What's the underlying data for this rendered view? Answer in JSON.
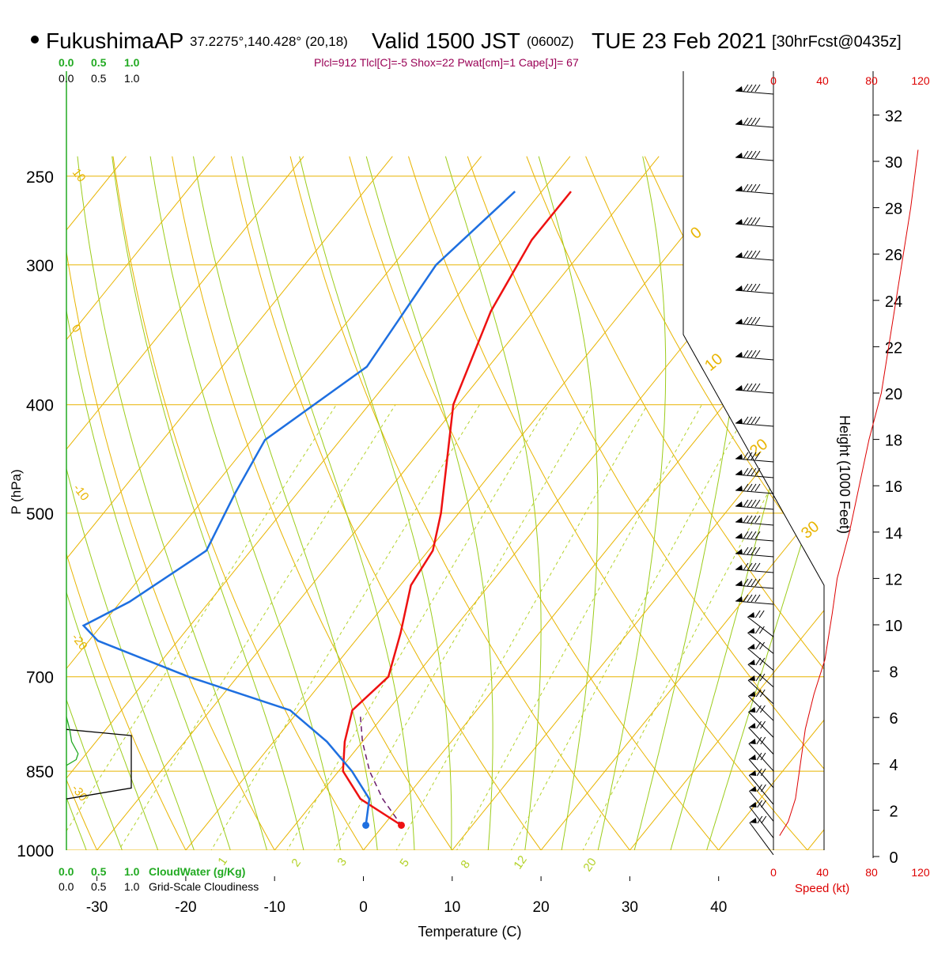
{
  "header": {
    "station": "FukushimaAP",
    "coords": "37.2275°,140.428° (20,18)",
    "valid": "Valid 1500 JST",
    "utc": "(0600Z)",
    "date": "TUE 23 Feb 2021",
    "forecast": "[30hrFcst@0435z]",
    "indices": "Plcl=912 Tlcl[C]=-5 Shox=22 Pwat[cm]=1 Cape[J]= 67"
  },
  "colors": {
    "temperature": "#ee1111",
    "dewpoint": "#1e6fe0",
    "parcel": "#6a1a6a",
    "isotherm": "#e8b400",
    "dry_adiabat": "#e8b400",
    "moist_adiabat": "#9ccc1a",
    "mixing_ratio": "#b4d22a",
    "cloudwater": "#22aa22",
    "indices": "#990055",
    "speed": "#dd0000"
  },
  "chart_data": {
    "type": "line",
    "xlabel": "Temperature (C)",
    "ylabel": "P (hPa)",
    "xlim": [
      -34,
      46
    ],
    "pressure_levels": [
      250,
      300,
      400,
      500,
      700,
      850,
      1000
    ],
    "x_ticks": [
      -30,
      -20,
      -10,
      0,
      10,
      20,
      30,
      40
    ],
    "isotherm_labels": [
      "10",
      "0",
      "-10",
      "-20",
      "-30"
    ],
    "dry_adiabat_labels": [
      "0",
      "10",
      "20",
      "30"
    ],
    "mixing_ratio_labels": [
      "1",
      "2",
      "3",
      "5",
      "8",
      "12",
      "20"
    ],
    "series": [
      {
        "name": "temperature",
        "pressure": [
          258,
          285,
          330,
          400,
          500,
          540,
          580,
          640,
          700,
          750,
          800,
          850,
          900,
          950
        ],
        "temperature": [
          -36.7,
          -36.7,
          -34.8,
          -30.5,
          -22.0,
          -19.5,
          -18.8,
          -15.6,
          -13.0,
          -14.0,
          -12.0,
          -9.5,
          -5.0,
          2.0
        ]
      },
      {
        "name": "dewpoint",
        "pressure": [
          258,
          300,
          370,
          430,
          480,
          540,
          600,
          630,
          650,
          700,
          750,
          800,
          850,
          900,
          950
        ],
        "temperature": [
          -43.0,
          -45.2,
          -43.7,
          -48.5,
          -47.0,
          -45.0,
          -49.0,
          -52.0,
          -49.0,
          -35.5,
          -21.0,
          -14.0,
          -8.5,
          -4.0,
          -2.0
        ]
      },
      {
        "name": "parcel",
        "pressure": [
          760,
          800,
          850,
          900,
          950
        ],
        "temperature": [
          -12.5,
          -10.0,
          -6.5,
          -2.5,
          2.0
        ]
      }
    ],
    "wind_axis": {
      "label": "Speed (kt)",
      "ticks": [
        "0",
        "40",
        "80",
        "120"
      ]
    },
    "height_axis": {
      "label": "Height (1000 Feet)",
      "ticks": [
        "0",
        "2",
        "4",
        "6",
        "8",
        "10",
        "12",
        "14",
        "16",
        "18",
        "20",
        "22",
        "24",
        "26",
        "28",
        "30",
        "32"
      ]
    },
    "cloud_axis": {
      "cloudwater_label": "CloudWater (g/Kg)",
      "cloudiness_label": "Grid-Scale Cloudiness",
      "ticks": [
        "0.0",
        "0.5",
        "1.0"
      ]
    },
    "wind_speed_profile": {
      "height_kft": [
        0.9,
        1.5,
        2.5,
        4.0,
        5.5,
        7.0,
        8.5,
        10.5,
        12.0,
        14.0,
        16.0,
        18.0,
        20.0,
        24.0,
        28.0,
        30.5
      ],
      "speed_kt": [
        5,
        12,
        18,
        22,
        26,
        33,
        42,
        48,
        52,
        62,
        70,
        78,
        88,
        100,
        112,
        118
      ]
    },
    "cloudwater_profile": {
      "pressure": [
        760,
        780,
        800,
        820,
        830,
        840
      ],
      "value": [
        0.0,
        0.05,
        0.08,
        0.18,
        0.15,
        0.0
      ]
    },
    "cloudiness_profile": {
      "pressure": [
        780,
        790,
        880,
        900
      ],
      "value": [
        0.0,
        1.0,
        1.0,
        0.0
      ]
    }
  }
}
